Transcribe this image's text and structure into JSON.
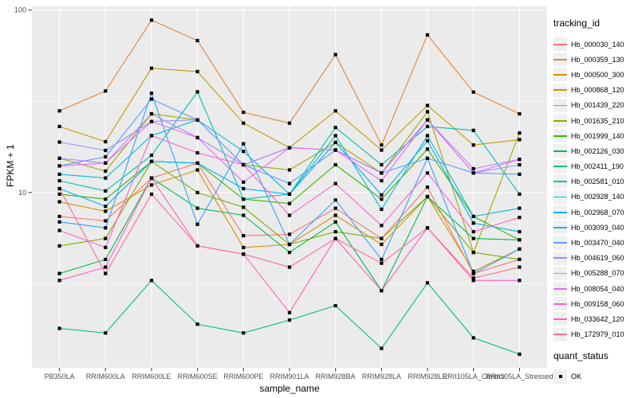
{
  "figure": {
    "panel_bg": "#EBEBEB",
    "grid_color": "#FFFFFF",
    "tick_color": "#333333",
    "tick_label_color": "#4D4D4D",
    "point_color": "#000000"
  },
  "axes": {
    "y_title": "FPKM + 1",
    "x_title": "sample_name",
    "y_scale": "log10",
    "y_log_domain": [
      0.04,
      2.02
    ],
    "y_ticks": [
      {
        "label": "100",
        "value": 100
      },
      {
        "label": "10",
        "value": 10
      }
    ],
    "y_minor_gridlines": [
      31.62,
      3.162
    ]
  },
  "legend": {
    "tracking_title": "tracking_id",
    "quant_title": "quant_status",
    "quant_items": [
      {
        "label": "OK"
      }
    ],
    "key_fill": "#F0F0F0"
  },
  "chart_data": {
    "type": "line",
    "title": "",
    "xlabel": "sample_name",
    "ylabel": "FPKM + 1",
    "y_scale": "log10",
    "grid": true,
    "legend_position": "right",
    "x": [
      "PB350LA",
      "RRIM600LA",
      "RRIM600LE",
      "RRIM600SE",
      "RRIM600PE",
      "RRIM901LA",
      "RRIM928BA",
      "RRIM928LA",
      "RRIM928LE",
      "RRII105LA_Control",
      "RRII105LA_Stressed"
    ],
    "series": [
      {
        "name": "Hb_000030_140",
        "color": "#F8766D",
        "values": [
          7.4,
          7.0,
          12.0,
          14.5,
          5.8,
          5.9,
          8.2,
          5.6,
          10.7,
          3.6,
          4.3
        ]
      },
      {
        "name": "Hb_000359_130",
        "color": "#EA8331",
        "values": [
          28,
          36,
          88,
          68,
          27.5,
          24,
          57,
          18.2,
          73,
          35.5,
          27
        ]
      },
      {
        "name": "Hb_000500_300",
        "color": "#D89000",
        "values": [
          8.9,
          7.9,
          11.0,
          13.3,
          5.0,
          5.2,
          7.5,
          5.2,
          9.5,
          3.7,
          4.9
        ]
      },
      {
        "name": "Hb_000868_120",
        "color": "#C09B00",
        "values": [
          23,
          19,
          48,
          46,
          24,
          17.6,
          28,
          17.1,
          30,
          18.2,
          19.5
        ]
      },
      {
        "name": "Hb_001439_220",
        "color": "#A3A500",
        "values": [
          15.4,
          13.1,
          27,
          25,
          14.2,
          13.3,
          18.8,
          12.8,
          27.7,
          4.7,
          21.2
        ]
      },
      {
        "name": "Hb_001635_210",
        "color": "#7CAE00",
        "values": [
          5.1,
          5.6,
          14.8,
          10.0,
          8.3,
          5.2,
          6.1,
          5.6,
          9.5,
          4.7,
          4.3
        ]
      },
      {
        "name": "Hb_001999_140",
        "color": "#39B600",
        "values": [
          9.8,
          9.2,
          14.8,
          14.5,
          9.2,
          8.7,
          14.2,
          9.2,
          17.3,
          7.4,
          5.5
        ]
      },
      {
        "name": "Hb_002126_030",
        "color": "#00BB4E",
        "values": [
          3.6,
          4.3,
          12.0,
          8.2,
          7.5,
          4.7,
          6.9,
          2.9,
          9.5,
          5.6,
          5.5
        ]
      },
      {
        "name": "Hb_002411_190",
        "color": "#00C087",
        "values": [
          1.8,
          1.7,
          3.3,
          1.9,
          1.7,
          2.0,
          2.4,
          1.4,
          3.2,
          1.6,
          1.3
        ]
      },
      {
        "name": "Hb_002581_010",
        "color": "#00C0AF",
        "values": [
          11.6,
          10.2,
          16.0,
          35.6,
          9.2,
          9.8,
          22.7,
          14.2,
          23,
          21.9,
          9.8
        ]
      },
      {
        "name": "Hb_002928_140",
        "color": "#00BCD8",
        "values": [
          12.6,
          12.0,
          20.5,
          25,
          16.8,
          9.8,
          20.5,
          8.1,
          20.5,
          7.4,
          8.2
        ]
      },
      {
        "name": "Hb_002968_070",
        "color": "#00B0F6",
        "values": [
          10.5,
          8.4,
          14.8,
          14.5,
          10.5,
          9.8,
          18.8,
          9.7,
          19.2,
          6.8,
          6.1
        ]
      },
      {
        "name": "Hb_003093_040",
        "color": "#35A2FF",
        "values": [
          6.9,
          6.4,
          35,
          6.7,
          18.5,
          5.2,
          9.1,
          4.3,
          15.4,
          3.6,
          4.9
        ]
      },
      {
        "name": "Hb_003470_040",
        "color": "#619CFF",
        "values": [
          14,
          15.7,
          32.5,
          25,
          14.2,
          11.2,
          17.1,
          12.8,
          15.4,
          12.8,
          12.6
        ]
      },
      {
        "name": "Hb_004619_060",
        "color": "#9590FF",
        "values": [
          18.9,
          17,
          24.5,
          25,
          14.2,
          17.6,
          17.1,
          12.8,
          25,
          12.8,
          14.2
        ]
      },
      {
        "name": "Hb_005288_070",
        "color": "#B983FF",
        "values": [
          15.4,
          14.5,
          27,
          20,
          14.2,
          17.6,
          17.1,
          12.8,
          25,
          13.5,
          15.2
        ]
      },
      {
        "name": "Hb_008054_040",
        "color": "#E76BF3",
        "values": [
          14,
          14.5,
          24.5,
          20,
          11.4,
          17.6,
          17.1,
          11.6,
          25,
          12.8,
          15.2
        ]
      },
      {
        "name": "Hb_009158_060",
        "color": "#FD61D1",
        "values": [
          6.2,
          5.0,
          20.5,
          16.5,
          14.2,
          7.5,
          11.2,
          6.6,
          12.8,
          6.1,
          7.3
        ]
      },
      {
        "name": "Hb_033642_120",
        "color": "#FF62BC",
        "values": [
          3.3,
          3.9,
          12.0,
          5.1,
          4.6,
          2.2,
          5.6,
          2.9,
          6.4,
          3.3,
          3.3
        ]
      },
      {
        "name": "Hb_172979_010",
        "color": "#FF6A98",
        "values": [
          10.5,
          3.6,
          9.8,
          5.1,
          4.6,
          3.9,
          5.6,
          4.1,
          6.4,
          3.4,
          3.9
        ]
      }
    ]
  }
}
